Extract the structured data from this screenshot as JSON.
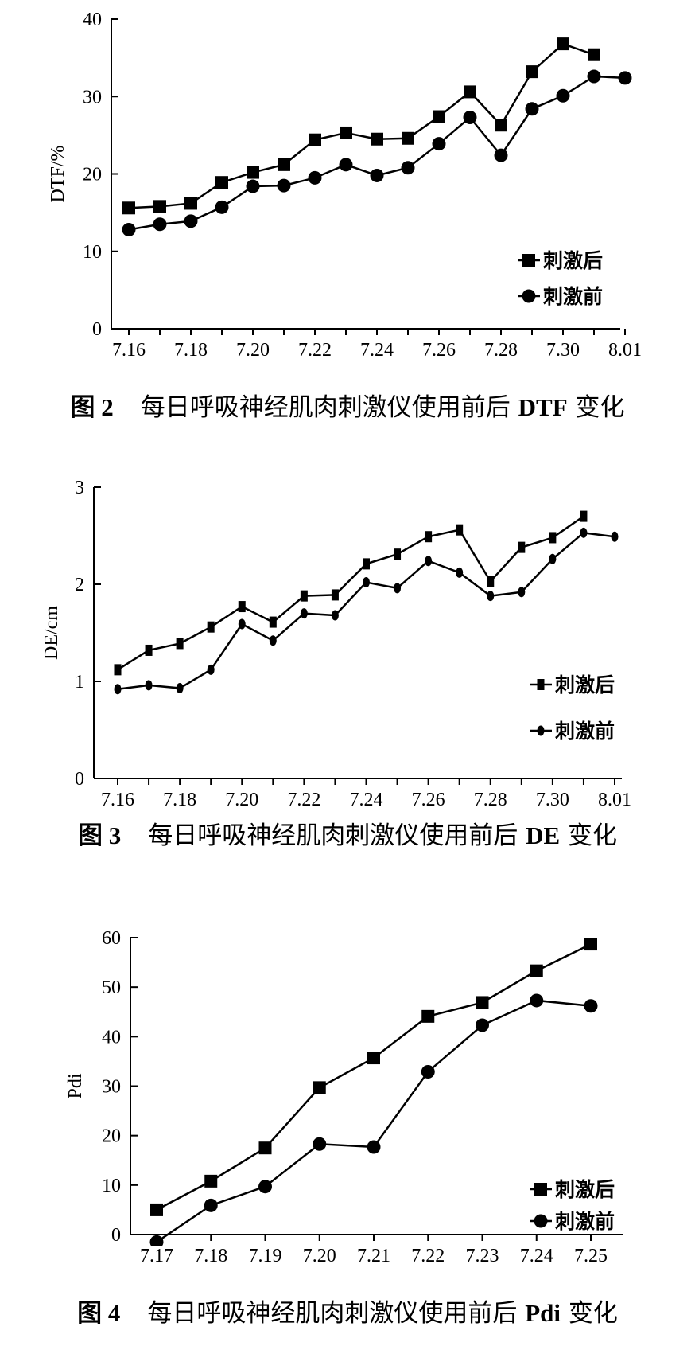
{
  "chart_data": [
    {
      "type": "line",
      "ylabel": "DTF/%",
      "xlabel": "",
      "ylim": [
        0,
        40
      ],
      "yticks": [
        0,
        10,
        20,
        30,
        40
      ],
      "x_tick_labels": [
        "7.16",
        "7.18",
        "7.20",
        "7.22",
        "7.24",
        "7.26",
        "7.28",
        "7.30",
        "8.01"
      ],
      "categories": [
        "7.16",
        "7.17",
        "7.18",
        "7.19",
        "7.20",
        "7.21",
        "7.22",
        "7.23",
        "7.24",
        "7.25",
        "7.26",
        "7.27",
        "7.28",
        "7.29",
        "7.30",
        "7.31",
        "8.01"
      ],
      "legend_position": "bottom-right",
      "series": [
        {
          "name": "刺激后",
          "marker": "square",
          "values": [
            15.6,
            15.8,
            16.2,
            18.9,
            20.2,
            21.2,
            24.4,
            25.3,
            24.5,
            24.6,
            27.4,
            30.6,
            26.3,
            33.2,
            36.8,
            35.4,
            null
          ]
        },
        {
          "name": "刺激前",
          "marker": "circle",
          "values": [
            12.8,
            13.5,
            13.9,
            15.7,
            18.4,
            18.5,
            19.5,
            21.2,
            19.8,
            20.8,
            23.9,
            27.3,
            22.4,
            28.4,
            30.1,
            32.6,
            32.4
          ]
        }
      ]
    },
    {
      "type": "line",
      "ylabel": "DE/cm",
      "xlabel": "",
      "ylim": [
        0,
        3
      ],
      "yticks": [
        0,
        1,
        2,
        3
      ],
      "x_tick_labels": [
        "7.16",
        "7.18",
        "7.20",
        "7.22",
        "7.24",
        "7.26",
        "7.28",
        "7.30",
        "8.01"
      ],
      "categories": [
        "7.16",
        "7.17",
        "7.18",
        "7.19",
        "7.20",
        "7.21",
        "7.22",
        "7.23",
        "7.24",
        "7.25",
        "7.26",
        "7.27",
        "7.28",
        "7.29",
        "7.30",
        "7.31",
        "8.01"
      ],
      "legend_position": "bottom-right",
      "series": [
        {
          "name": "刺激后",
          "marker": "dash",
          "values": [
            1.12,
            1.32,
            1.39,
            1.56,
            1.77,
            1.61,
            1.88,
            1.89,
            2.21,
            2.31,
            2.49,
            2.56,
            2.03,
            2.38,
            2.48,
            2.7,
            null
          ]
        },
        {
          "name": "刺激前",
          "marker": "oval",
          "values": [
            0.92,
            0.96,
            0.93,
            1.12,
            1.59,
            1.42,
            1.7,
            1.68,
            2.02,
            1.96,
            2.24,
            2.12,
            1.88,
            1.92,
            2.26,
            2.53,
            2.49
          ]
        }
      ]
    },
    {
      "type": "line",
      "ylabel": "Pdi",
      "xlabel": "",
      "ylim": [
        0,
        60
      ],
      "yticks": [
        0,
        10,
        20,
        30,
        40,
        50,
        60
      ],
      "x_tick_labels": [
        "7.17",
        "7.18",
        "7.19",
        "7.20",
        "7.21",
        "7.22",
        "7.23",
        "7.24",
        "7.25"
      ],
      "categories": [
        "7.17",
        "7.18",
        "7.19",
        "7.20",
        "7.21",
        "7.22",
        "7.23",
        "7.24",
        "7.25"
      ],
      "legend_position": "bottom-right",
      "series": [
        {
          "name": "刺激后",
          "marker": "square",
          "values": [
            5.0,
            10.8,
            17.5,
            29.7,
            35.7,
            44.1,
            46.9,
            53.3,
            58.7
          ]
        },
        {
          "name": "刺激前",
          "marker": "circle",
          "values": [
            -1.5,
            5.9,
            9.7,
            18.3,
            17.7,
            32.9,
            42.3,
            47.3,
            46.2
          ]
        }
      ]
    }
  ],
  "captions": [
    {
      "num": "图 2",
      "text": "每日呼吸神经肌肉刺激仪使用前后",
      "metric": "DTF",
      "suffix": "变化"
    },
    {
      "num": "图 3",
      "text": "每日呼吸神经肌肉刺激仪使用前后",
      "metric": "DE",
      "suffix": "变化"
    },
    {
      "num": "图 4",
      "text": "每日呼吸神经肌肉刺激仪使用前后",
      "metric": "Pdi",
      "suffix": "变化"
    }
  ]
}
